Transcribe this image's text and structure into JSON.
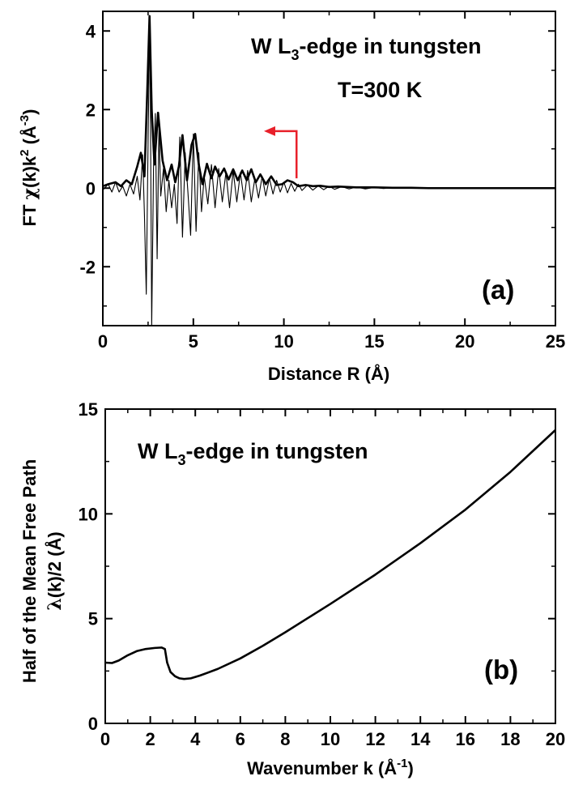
{
  "chart_data": [
    {
      "type": "line",
      "panel_label": "(a)",
      "annotation": {
        "line1_prefix": "W L",
        "line1_sub": "3",
        "line1_suffix": "-edge in tungsten",
        "line2": "T=300 K"
      },
      "xlabel": "Distance R (Å)",
      "ylabel": {
        "prefix": "FT ",
        "chi": "χ",
        "mid": "(k)k",
        "sup": "2",
        "unit_open": " (Å",
        "unit_sup": "-3",
        "unit_close": ")"
      },
      "xlim": [
        0,
        25
      ],
      "ylim": [
        -3.5,
        4.5
      ],
      "xticks": [
        0,
        5,
        10,
        15,
        20,
        25
      ],
      "xtick_labels": [
        "0",
        "5",
        "10",
        "15",
        "20",
        "25"
      ],
      "yticks": [
        -2,
        0,
        2,
        4
      ],
      "ytick_labels": [
        "-2",
        "0",
        "2",
        "4"
      ],
      "arrow": {
        "color": "#e8202a",
        "from": [
          10.7,
          0.25
        ],
        "corner": [
          10.7,
          1.45
        ],
        "to": [
          8.9,
          1.45
        ]
      },
      "series": [
        {
          "style": "thick",
          "x": [
            0.0,
            0.3,
            0.7,
            1.0,
            1.3,
            1.6,
            1.9,
            2.1,
            2.3,
            2.45,
            2.58,
            2.7,
            2.85,
            3.05,
            3.3,
            3.55,
            3.8,
            4.0,
            4.2,
            4.4,
            4.65,
            4.9,
            5.1,
            5.3,
            5.5,
            5.75,
            6.0,
            6.2,
            6.45,
            6.7,
            6.95,
            7.2,
            7.45,
            7.7,
            7.95,
            8.2,
            8.45,
            8.7,
            9.0,
            9.3,
            9.6,
            9.9,
            10.2,
            10.5,
            10.8,
            11.2,
            11.6,
            12.0,
            12.5,
            13.0,
            14.0,
            15.0,
            16.0,
            17.0,
            18.0,
            20.0,
            22.5,
            25.0
          ],
          "y": [
            0.05,
            0.1,
            0.15,
            0.05,
            0.2,
            0.1,
            0.55,
            0.9,
            0.3,
            2.4,
            4.38,
            2.0,
            0.6,
            1.92,
            0.7,
            0.2,
            0.6,
            0.15,
            0.55,
            1.35,
            0.2,
            1.1,
            1.38,
            0.6,
            0.1,
            0.62,
            0.25,
            0.55,
            0.3,
            0.5,
            0.22,
            0.48,
            0.2,
            0.45,
            0.2,
            0.48,
            0.15,
            0.35,
            0.1,
            0.3,
            0.08,
            0.1,
            0.2,
            0.15,
            0.05,
            0.08,
            0.05,
            0.06,
            0.03,
            0.04,
            0.02,
            0.02,
            0.01,
            0.01,
            0.0,
            0.0,
            0.0,
            0.0
          ]
        },
        {
          "style": "thin",
          "x": [
            0.0,
            0.3,
            0.5,
            0.7,
            0.9,
            1.1,
            1.3,
            1.5,
            1.7,
            1.9,
            2.05,
            2.2,
            2.3,
            2.4,
            2.5,
            2.6,
            2.7,
            2.8,
            2.9,
            3.0,
            3.1,
            3.2,
            3.35,
            3.5,
            3.65,
            3.8,
            3.95,
            4.1,
            4.25,
            4.4,
            4.55,
            4.7,
            4.85,
            5.0,
            5.15,
            5.3,
            5.45,
            5.6,
            5.8,
            6.0,
            6.2,
            6.4,
            6.6,
            6.8,
            7.0,
            7.2,
            7.4,
            7.6,
            7.8,
            8.0,
            8.2,
            8.4,
            8.6,
            8.8,
            9.0,
            9.2,
            9.4,
            9.6,
            9.8,
            10.0,
            10.2,
            10.4,
            10.6,
            10.8,
            11.0,
            11.3,
            11.6,
            11.9,
            12.2,
            12.5,
            12.8,
            13.2,
            13.6,
            14.0,
            14.5,
            15.0,
            15.5,
            16.0,
            17.0,
            18.0,
            20.0,
            22.5,
            25.0
          ],
          "y": [
            -0.05,
            0.1,
            -0.1,
            0.15,
            -0.1,
            0.05,
            -0.2,
            0.1,
            -0.15,
            0.3,
            -0.3,
            0.85,
            -0.7,
            -2.7,
            1.2,
            4.38,
            -3.5,
            0.5,
            1.9,
            -1.8,
            1.5,
            -0.2,
            0.5,
            -0.6,
            0.2,
            -0.5,
            0.1,
            -0.9,
            1.3,
            -1.25,
            0.9,
            -0.1,
            -1.2,
            1.38,
            -1.1,
            0.9,
            -0.6,
            0.3,
            -0.4,
            0.6,
            -0.5,
            0.5,
            -0.35,
            0.4,
            -0.5,
            0.45,
            -0.35,
            0.4,
            -0.3,
            0.45,
            -0.35,
            0.25,
            -0.25,
            0.3,
            -0.2,
            0.25,
            -0.15,
            0.2,
            -0.1,
            0.15,
            -0.12,
            0.12,
            -0.08,
            0.1,
            -0.06,
            0.08,
            -0.05,
            0.06,
            -0.04,
            0.05,
            -0.03,
            0.04,
            -0.02,
            0.03,
            -0.02,
            0.02,
            -0.01,
            0.01,
            0.0,
            0.0,
            0.0,
            0.0,
            0.0
          ]
        }
      ]
    },
    {
      "type": "line",
      "panel_label": "(b)",
      "annotation": {
        "line1_prefix": "W L",
        "line1_sub": "3",
        "line1_suffix": "-edge in tungsten"
      },
      "xlabel": {
        "text": "Wavenumber k (Å",
        "sup": "-1",
        "close": ")"
      },
      "ylabel_line1": "Half of the Mean Free Path",
      "ylabel_line2": {
        "lambda": "λ",
        "text": "(k)/2 (Å)"
      },
      "xlim": [
        0,
        20
      ],
      "ylim": [
        0,
        15
      ],
      "xticks": [
        0,
        2,
        4,
        6,
        8,
        10,
        12,
        14,
        16,
        18,
        20
      ],
      "xtick_labels": [
        "0",
        "2",
        "4",
        "6",
        "8",
        "10",
        "12",
        "14",
        "16",
        "18",
        "20"
      ],
      "yticks": [
        0,
        5,
        10,
        15
      ],
      "ytick_labels": [
        "0",
        "5",
        "10",
        "15"
      ],
      "series": [
        {
          "style": "thick",
          "x": [
            0.0,
            0.3,
            0.6,
            1.0,
            1.4,
            1.8,
            2.2,
            2.5,
            2.65,
            2.75,
            2.9,
            3.1,
            3.3,
            3.5,
            3.8,
            4.2,
            5.0,
            6.0,
            7.0,
            8.0,
            10.0,
            12.0,
            14.0,
            16.0,
            18.0,
            20.0
          ],
          "y": [
            2.9,
            2.88,
            3.0,
            3.25,
            3.45,
            3.55,
            3.6,
            3.62,
            3.55,
            2.9,
            2.45,
            2.25,
            2.15,
            2.12,
            2.15,
            2.28,
            2.6,
            3.1,
            3.7,
            4.35,
            5.7,
            7.1,
            8.6,
            10.2,
            12.0,
            14.0
          ]
        }
      ]
    }
  ]
}
